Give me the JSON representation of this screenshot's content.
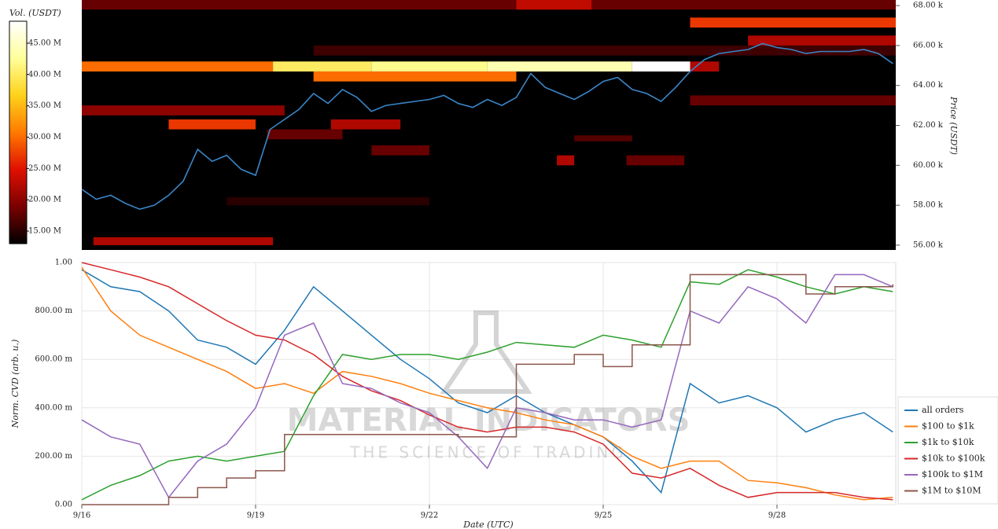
{
  "chart_data": [
    {
      "type": "heatmap",
      "ylabel": "Price (USDT)",
      "xlim": [
        16,
        30.05
      ],
      "ylim": [
        55760,
        68280
      ],
      "yticks": [
        {
          "value": 56000,
          "label": "56.00 k"
        },
        {
          "value": 58000,
          "label": "58.00 k"
        },
        {
          "value": 60000,
          "label": "60.00 k"
        },
        {
          "value": 62000,
          "label": "62.00 k"
        },
        {
          "value": 64000,
          "label": "64.00 k"
        },
        {
          "value": 66000,
          "label": "66.00 k"
        },
        {
          "value": 68000,
          "label": "68.00 k"
        }
      ],
      "colorbar": {
        "title": "Vol. (USDT)",
        "zlim": [
          13000000,
          48500000
        ],
        "colorscale": [
          "#000000",
          "#7a0000",
          "#e01000",
          "#ff7a00",
          "#ffd21a",
          "#ffff9a",
          "#ffffff"
        ],
        "ticks": [
          {
            "value": 15000000,
            "label": "15.00 M"
          },
          {
            "value": 20000000,
            "label": "20.00 M"
          },
          {
            "value": 25000000,
            "label": "25.00 M"
          },
          {
            "value": 30000000,
            "label": "30.00 M"
          },
          {
            "value": 35000000,
            "label": "35.00 M"
          },
          {
            "value": 40000000,
            "label": "40.00 M"
          },
          {
            "value": 45000000,
            "label": "45.00 M"
          }
        ]
      },
      "levels": [
        {
          "x0": 16,
          "x1": 19.3,
          "y0": 64700,
          "y1": 65200,
          "volume": 30000000
        },
        {
          "x0": 19.3,
          "x1": 21,
          "y0": 64700,
          "y1": 65200,
          "volume": 40000000
        },
        {
          "x0": 21,
          "x1": 23,
          "y0": 64700,
          "y1": 65200,
          "volume": 42000000
        },
        {
          "x0": 23,
          "x1": 25.5,
          "y0": 64700,
          "y1": 65200,
          "volume": 44000000
        },
        {
          "x0": 25.5,
          "x1": 26.5,
          "y0": 64700,
          "y1": 65200,
          "volume": 48500000
        },
        {
          "x0": 26.5,
          "x1": 27,
          "y0": 64700,
          "y1": 65200,
          "volume": 22000000
        },
        {
          "x0": 20,
          "x1": 23.5,
          "y0": 64200,
          "y1": 64700,
          "volume": 30000000
        },
        {
          "x0": 16,
          "x1": 30.05,
          "y0": 67800,
          "y1": 68280,
          "volume": 18000000
        },
        {
          "x0": 23.5,
          "x1": 24.8,
          "y0": 67800,
          "y1": 68280,
          "volume": 23000000
        },
        {
          "x0": 26.5,
          "x1": 30.05,
          "y0": 66900,
          "y1": 67400,
          "volume": 27000000
        },
        {
          "x0": 27.5,
          "x1": 30.05,
          "y0": 66000,
          "y1": 66500,
          "volume": 22000000
        },
        {
          "x0": 20,
          "x1": 30.05,
          "y0": 65500,
          "y1": 66000,
          "volume": 16000000
        },
        {
          "x0": 26.5,
          "x1": 30.05,
          "y0": 63000,
          "y1": 63500,
          "volume": 18000000
        },
        {
          "x0": 16,
          "x1": 19.5,
          "y0": 62500,
          "y1": 63000,
          "volume": 20000000
        },
        {
          "x0": 17.5,
          "x1": 19,
          "y0": 61800,
          "y1": 62300,
          "volume": 27000000
        },
        {
          "x0": 20.3,
          "x1": 21.5,
          "y0": 61800,
          "y1": 62300,
          "volume": 22000000
        },
        {
          "x0": 19.2,
          "x1": 20.5,
          "y0": 61300,
          "y1": 61800,
          "volume": 18000000
        },
        {
          "x0": 24.5,
          "x1": 25.5,
          "y0": 61200,
          "y1": 61500,
          "volume": 17000000
        },
        {
          "x0": 21,
          "x1": 22,
          "y0": 60500,
          "y1": 61000,
          "volume": 18000000
        },
        {
          "x0": 24.2,
          "x1": 24.5,
          "y0": 60000,
          "y1": 60500,
          "volume": 22000000
        },
        {
          "x0": 25.4,
          "x1": 26.4,
          "y0": 60000,
          "y1": 60500,
          "volume": 18000000
        },
        {
          "x0": 18.5,
          "x1": 22,
          "y0": 58000,
          "y1": 58400,
          "volume": 15000000
        },
        {
          "x0": 16.2,
          "x1": 19.3,
          "y0": 56000,
          "y1": 56400,
          "volume": 22000000
        }
      ],
      "line": {
        "color": "#3a86c8",
        "x": [
          16,
          16.25,
          16.5,
          16.75,
          17,
          17.25,
          17.5,
          17.75,
          18,
          18.25,
          18.5,
          18.75,
          19,
          19.25,
          19.5,
          19.75,
          20,
          20.25,
          20.5,
          20.75,
          21,
          21.25,
          21.5,
          21.75,
          22,
          22.25,
          22.5,
          22.75,
          23,
          23.25,
          23.5,
          23.75,
          24,
          24.25,
          24.5,
          24.75,
          25,
          25.25,
          25.5,
          25.75,
          26,
          26.25,
          26.5,
          26.75,
          27,
          27.25,
          27.5,
          27.75,
          28,
          28.25,
          28.5,
          28.75,
          29,
          29.25,
          29.5,
          29.75,
          30
        ],
        "values": [
          58800,
          58300,
          58500,
          58100,
          57800,
          58000,
          58500,
          59200,
          60800,
          60200,
          60500,
          59800,
          59500,
          61800,
          62300,
          62800,
          63600,
          63100,
          63800,
          63400,
          62700,
          63000,
          63100,
          63200,
          63300,
          63500,
          63100,
          62900,
          63300,
          63000,
          63400,
          64600,
          63900,
          63600,
          63300,
          63700,
          64200,
          64400,
          63800,
          63600,
          63200,
          63900,
          64700,
          65300,
          65600,
          65700,
          65800,
          66100,
          65900,
          65800,
          65600,
          65700,
          65700,
          65700,
          65800,
          65600,
          65100
        ]
      }
    },
    {
      "type": "line",
      "ylabel": "Norm. CVD (arb. u.)",
      "xlabel": "Date (UTC)",
      "watermark": [
        "MATERIAL INDICATORS",
        "THE SCIENCE OF TRADING"
      ],
      "grid": true,
      "legend": "right",
      "xlim": [
        16,
        30.05
      ],
      "xticks": [
        {
          "value": 16,
          "label": "9/16"
        },
        {
          "value": 19,
          "label": "9/19"
        },
        {
          "value": 22,
          "label": "9/22"
        },
        {
          "value": 25,
          "label": "9/25"
        },
        {
          "value": 28,
          "label": "9/28"
        }
      ],
      "ylim": [
        0,
        1
      ],
      "yticks": [
        {
          "value": 0,
          "label": "0.00"
        },
        {
          "value": 0.2,
          "label": "200.00 m"
        },
        {
          "value": 0.4,
          "label": "400.00 m"
        },
        {
          "value": 0.6,
          "label": "600.00 m"
        },
        {
          "value": 0.8,
          "label": "800.00 m"
        },
        {
          "value": 1,
          "label": "1.00"
        }
      ],
      "x": [
        16,
        16.5,
        17,
        17.5,
        18,
        18.5,
        19,
        19.5,
        20,
        20.5,
        21,
        21.5,
        22,
        22.5,
        23,
        23.5,
        24,
        24.5,
        25,
        25.5,
        26,
        26.5,
        27,
        27.5,
        28,
        28.5,
        29,
        29.5,
        30
      ],
      "series": [
        {
          "name": "all orders",
          "color": "#1f77b4",
          "values": [
            0.97,
            0.9,
            0.88,
            0.8,
            0.68,
            0.65,
            0.58,
            0.72,
            0.9,
            0.8,
            0.7,
            0.6,
            0.52,
            0.42,
            0.38,
            0.45,
            0.38,
            0.33,
            0.28,
            0.18,
            0.05,
            0.5,
            0.42,
            0.45,
            0.4,
            0.3,
            0.35,
            0.38,
            0.3
          ]
        },
        {
          "name": "$100 to $1k",
          "color": "#ff7f0e",
          "values": [
            0.98,
            0.8,
            0.7,
            0.65,
            0.6,
            0.55,
            0.48,
            0.5,
            0.46,
            0.55,
            0.53,
            0.5,
            0.46,
            0.43,
            0.4,
            0.38,
            0.35,
            0.33,
            0.28,
            0.2,
            0.15,
            0.18,
            0.18,
            0.1,
            0.09,
            0.07,
            0.04,
            0.02,
            0.03
          ]
        },
        {
          "name": "$1k to $10k",
          "color": "#2ca02c",
          "values": [
            0.02,
            0.08,
            0.12,
            0.18,
            0.2,
            0.18,
            0.2,
            0.22,
            0.45,
            0.62,
            0.6,
            0.62,
            0.62,
            0.6,
            0.63,
            0.67,
            0.66,
            0.65,
            0.7,
            0.68,
            0.65,
            0.92,
            0.91,
            0.97,
            0.94,
            0.9,
            0.87,
            0.9,
            0.88
          ]
        },
        {
          "name": "$10k to $100k",
          "color": "#d62728",
          "values": [
            1,
            0.97,
            0.94,
            0.9,
            0.83,
            0.76,
            0.7,
            0.68,
            0.62,
            0.53,
            0.47,
            0.43,
            0.37,
            0.32,
            0.3,
            0.32,
            0.32,
            0.3,
            0.25,
            0.13,
            0.11,
            0.15,
            0.08,
            0.03,
            0.05,
            0.05,
            0.05,
            0.03,
            0.02
          ]
        },
        {
          "name": "$100k to $1M",
          "color": "#9467bd",
          "values": [
            0.35,
            0.28,
            0.25,
            0.03,
            0.18,
            0.25,
            0.4,
            0.7,
            0.75,
            0.5,
            0.48,
            0.42,
            0.38,
            0.28,
            0.15,
            0.4,
            0.38,
            0.35,
            0.35,
            0.32,
            0.35,
            0.8,
            0.75,
            0.9,
            0.85,
            0.75,
            0.95,
            0.95,
            0.9
          ]
        },
        {
          "name": "$1M to $10M",
          "color": "#8c564b",
          "shape": "hv",
          "values": [
            0,
            0,
            0,
            0.03,
            0.07,
            0.11,
            0.14,
            0.29,
            0.29,
            0.29,
            0.29,
            0.29,
            0.29,
            0.28,
            0.28,
            0.58,
            0.58,
            0.62,
            0.57,
            0.66,
            0.66,
            0.95,
            0.95,
            0.95,
            0.95,
            0.87,
            0.9,
            0.9,
            0.91
          ]
        }
      ]
    }
  ]
}
